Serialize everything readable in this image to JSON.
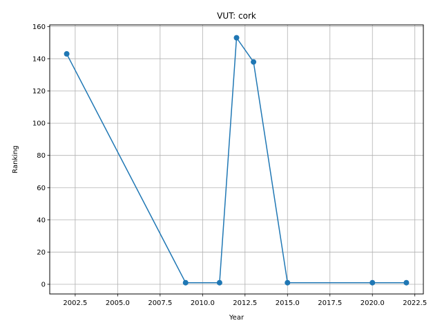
{
  "chart_data": {
    "type": "line",
    "title": "VUT: cork",
    "xlabel": "Year",
    "ylabel": "Ranking",
    "xlim": [
      2001.0,
      2023.0
    ],
    "ylim": [
      -6,
      161
    ],
    "xticks": [
      2002.5,
      2005.0,
      2007.5,
      2010.0,
      2012.5,
      2015.0,
      2017.5,
      2020.0,
      2022.5
    ],
    "xtick_labels": [
      "2002.5",
      "2005.0",
      "2007.5",
      "2010.0",
      "2012.5",
      "2015.0",
      "2017.5",
      "2020.0",
      "2022.5"
    ],
    "yticks": [
      0,
      20,
      40,
      60,
      80,
      100,
      120,
      140,
      160
    ],
    "ytick_labels": [
      "0",
      "20",
      "40",
      "60",
      "80",
      "100",
      "120",
      "140",
      "160"
    ],
    "grid": true,
    "series": [
      {
        "color": "#1f77b4",
        "marker": "circle",
        "x": [
          2002,
          2009,
          2011,
          2012,
          2013,
          2015,
          2020,
          2022
        ],
        "y": [
          143,
          1,
          1,
          153,
          138,
          1,
          1,
          1
        ]
      }
    ]
  }
}
